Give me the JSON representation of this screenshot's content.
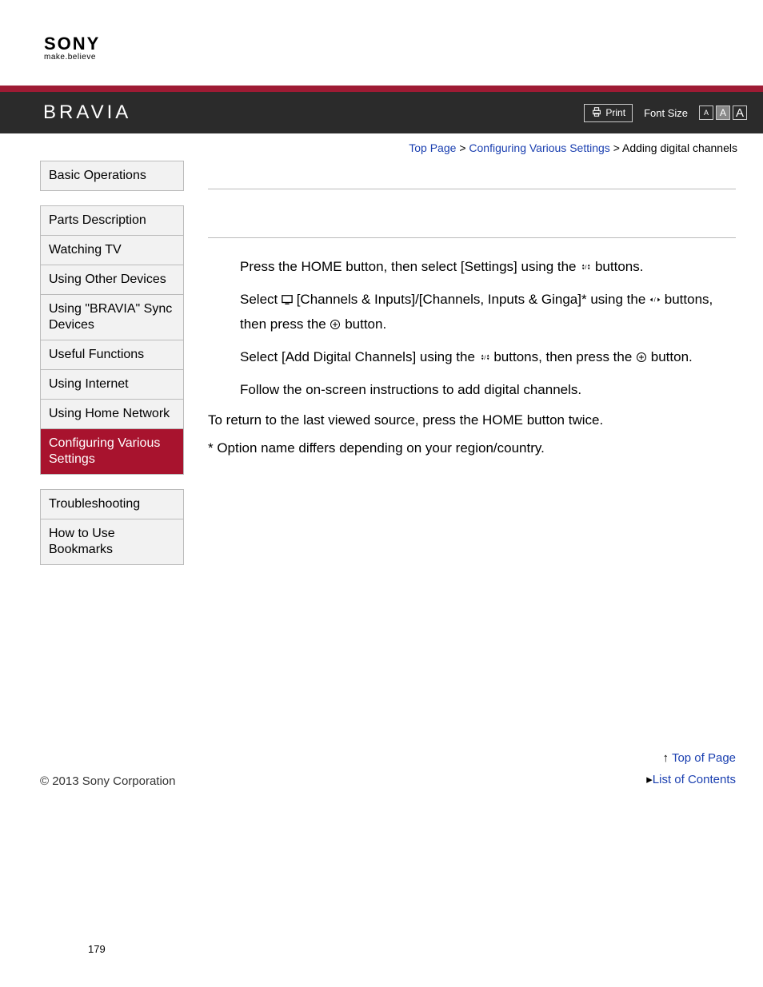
{
  "brand": {
    "name": "SONY",
    "tagline": "make.believe",
    "product": "BRAVIA"
  },
  "toolbar": {
    "print": "Print",
    "font_size_label": "Font Size",
    "font_a": "A"
  },
  "breadcrumb": {
    "top": "Top Page",
    "section": "Configuring Various Settings",
    "current": "Adding digital channels",
    "sep": ">"
  },
  "sidebar": {
    "group1": [
      "Basic Operations"
    ],
    "group2": [
      "Parts Description",
      "Watching TV",
      "Using Other Devices",
      "Using \"BRAVIA\" Sync Devices",
      "Useful Functions",
      "Using Internet",
      "Using Home Network",
      "Configuring Various Settings"
    ],
    "group3": [
      "Troubleshooting",
      "How to Use Bookmarks"
    ],
    "active": "Configuring Various Settings"
  },
  "content": {
    "step1_a": "Press the HOME button, then select [Settings] using the ",
    "step1_b": " buttons.",
    "step2_a": "Select ",
    "step2_b": " [Channels & Inputs]/[Channels, Inputs & Ginga]* using the ",
    "step2_c": " buttons, then press the ",
    "step2_d": " button.",
    "step3_a": "Select [Add Digital Channels] using the ",
    "step3_b": " buttons, then press the ",
    "step3_c": " button.",
    "step4": "Follow the on-screen instructions to add digital channels.",
    "post1": "To return to the last viewed source, press the HOME button twice.",
    "post2": "* Option name differs depending on your region/country."
  },
  "footer": {
    "top_of_page": "Top of Page",
    "list_of_contents": "List of Contents",
    "copyright": "© 2013 Sony Corporation",
    "page_num": "179"
  },
  "colors": {
    "red_bar": "#9e1b34",
    "black_bar": "#2b2b2b",
    "active_nav": "#a8132e",
    "link": "#1a3fb0",
    "sidebar_bg": "#f2f2f2",
    "border": "#bbbbbb"
  }
}
